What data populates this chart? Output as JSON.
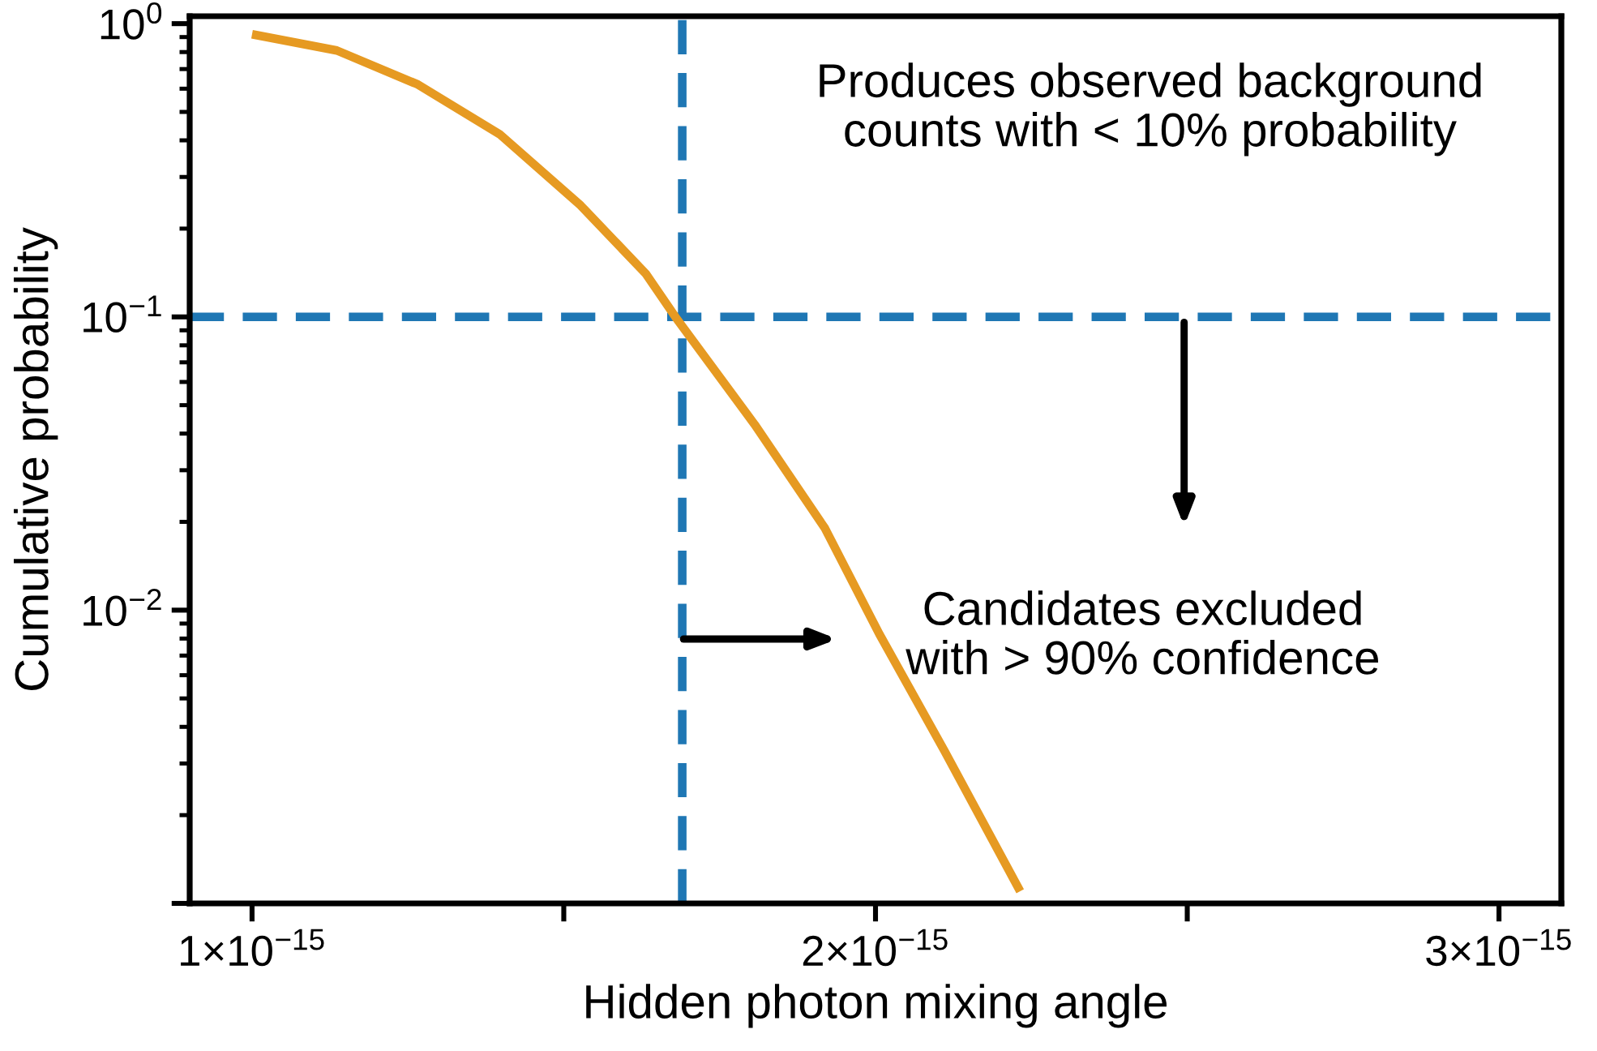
{
  "chart_data": {
    "type": "line",
    "xlabel": "Hidden photon mixing angle",
    "ylabel": "Cumulative probability",
    "series": [
      {
        "color": "#e69a22",
        "x": [
          1e-15,
          1.136e-15,
          1.266e-15,
          1.397e-15,
          1.527e-15,
          1.632e-15,
          1.679e-15,
          1.806e-15,
          1.919e-15,
          2.006e-15,
          2.111e-15,
          2.232e-15
        ],
        "values": [
          0.92,
          0.81,
          0.62,
          0.42,
          0.24,
          0.14,
          0.1,
          0.043,
          0.019,
          0.0083,
          0.0033,
          0.0011
        ]
      }
    ],
    "log": "y",
    "xlim": [
      9e-16,
      3.1e-15
    ],
    "ylim": [
      0.001,
      1.06
    ],
    "xticks": [
      {
        "value": 1e-15,
        "label": "1×10$^{−15}$"
      },
      {
        "value": 1.5e-15,
        "label": null
      },
      {
        "value": 2e-15,
        "label": "2×10$^{−15}$"
      },
      {
        "value": 2.5e-15,
        "label": null
      },
      {
        "value": 3e-15,
        "label": "3×10$^{−15}$"
      }
    ],
    "yticks": [
      {
        "value": 1,
        "label": "10$^{0}$"
      },
      {
        "value": 0.1,
        "label": "10$^{−1}$"
      },
      {
        "value": 0.01,
        "label": "10$^{−2}$"
      },
      {
        "value": 0.001,
        "label": null
      }
    ],
    "ref_lines": [
      {
        "axis": "x",
        "value": 1.69e-15,
        "color": "#1f77b4",
        "line_style": "dashed"
      },
      {
        "axis": "y",
        "value": 0.1,
        "color": "#1f77b4",
        "line_style": "dashed"
      }
    ],
    "annotations": [
      "Produces observed background\ncounts with < 10% probability",
      "Candidates excluded\nwith > 90% confidence"
    ],
    "grid": false,
    "legend": false,
    "line_style": "solid",
    "marker": "none"
  }
}
